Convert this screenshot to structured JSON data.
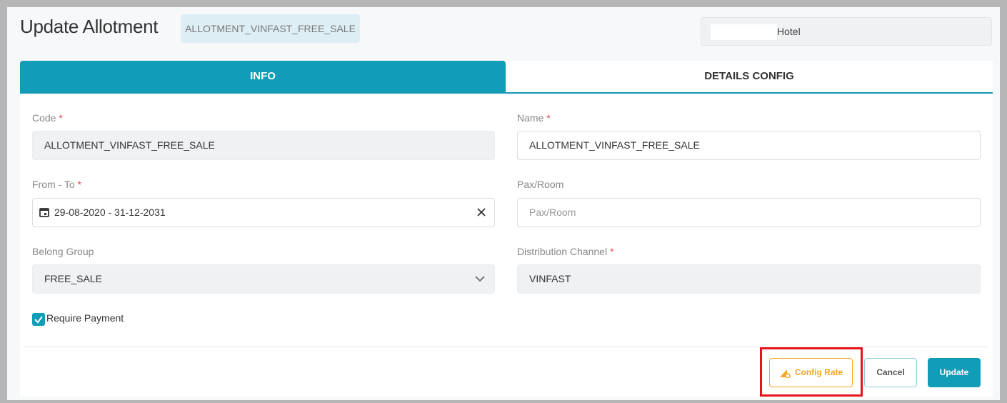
{
  "header": {
    "title": "Update Allotment",
    "code_badge": "ALLOTMENT_VINFAST_FREE_SALE",
    "hotel_label": "Hotel"
  },
  "tabs": [
    {
      "label": "INFO",
      "active": true
    },
    {
      "label": "DETAILS CONFIG",
      "active": false
    }
  ],
  "form": {
    "code": {
      "label": "Code",
      "required": "*",
      "value": "ALLOTMENT_VINFAST_FREE_SALE"
    },
    "name": {
      "label": "Name",
      "required": "*",
      "value": "ALLOTMENT_VINFAST_FREE_SALE"
    },
    "from_to": {
      "label": "From - To",
      "required": "*",
      "value": "29-08-2020 - 31-12-2031"
    },
    "pax_room": {
      "label": "Pax/Room",
      "placeholder": "Pax/Room"
    },
    "belong_group": {
      "label": "Belong Group",
      "value": "FREE_SALE"
    },
    "distribution_channel": {
      "label": "Distribution Channel",
      "required": "*",
      "value": "VINFAST"
    },
    "require_payment": {
      "label": "Require Payment",
      "checked": true
    }
  },
  "actions": {
    "config_rate": "Config Rate",
    "cancel": "Cancel",
    "update": "Update"
  },
  "colors": {
    "primary": "#119cb8",
    "warning": "#f5a623",
    "highlight": "#e8141c"
  }
}
